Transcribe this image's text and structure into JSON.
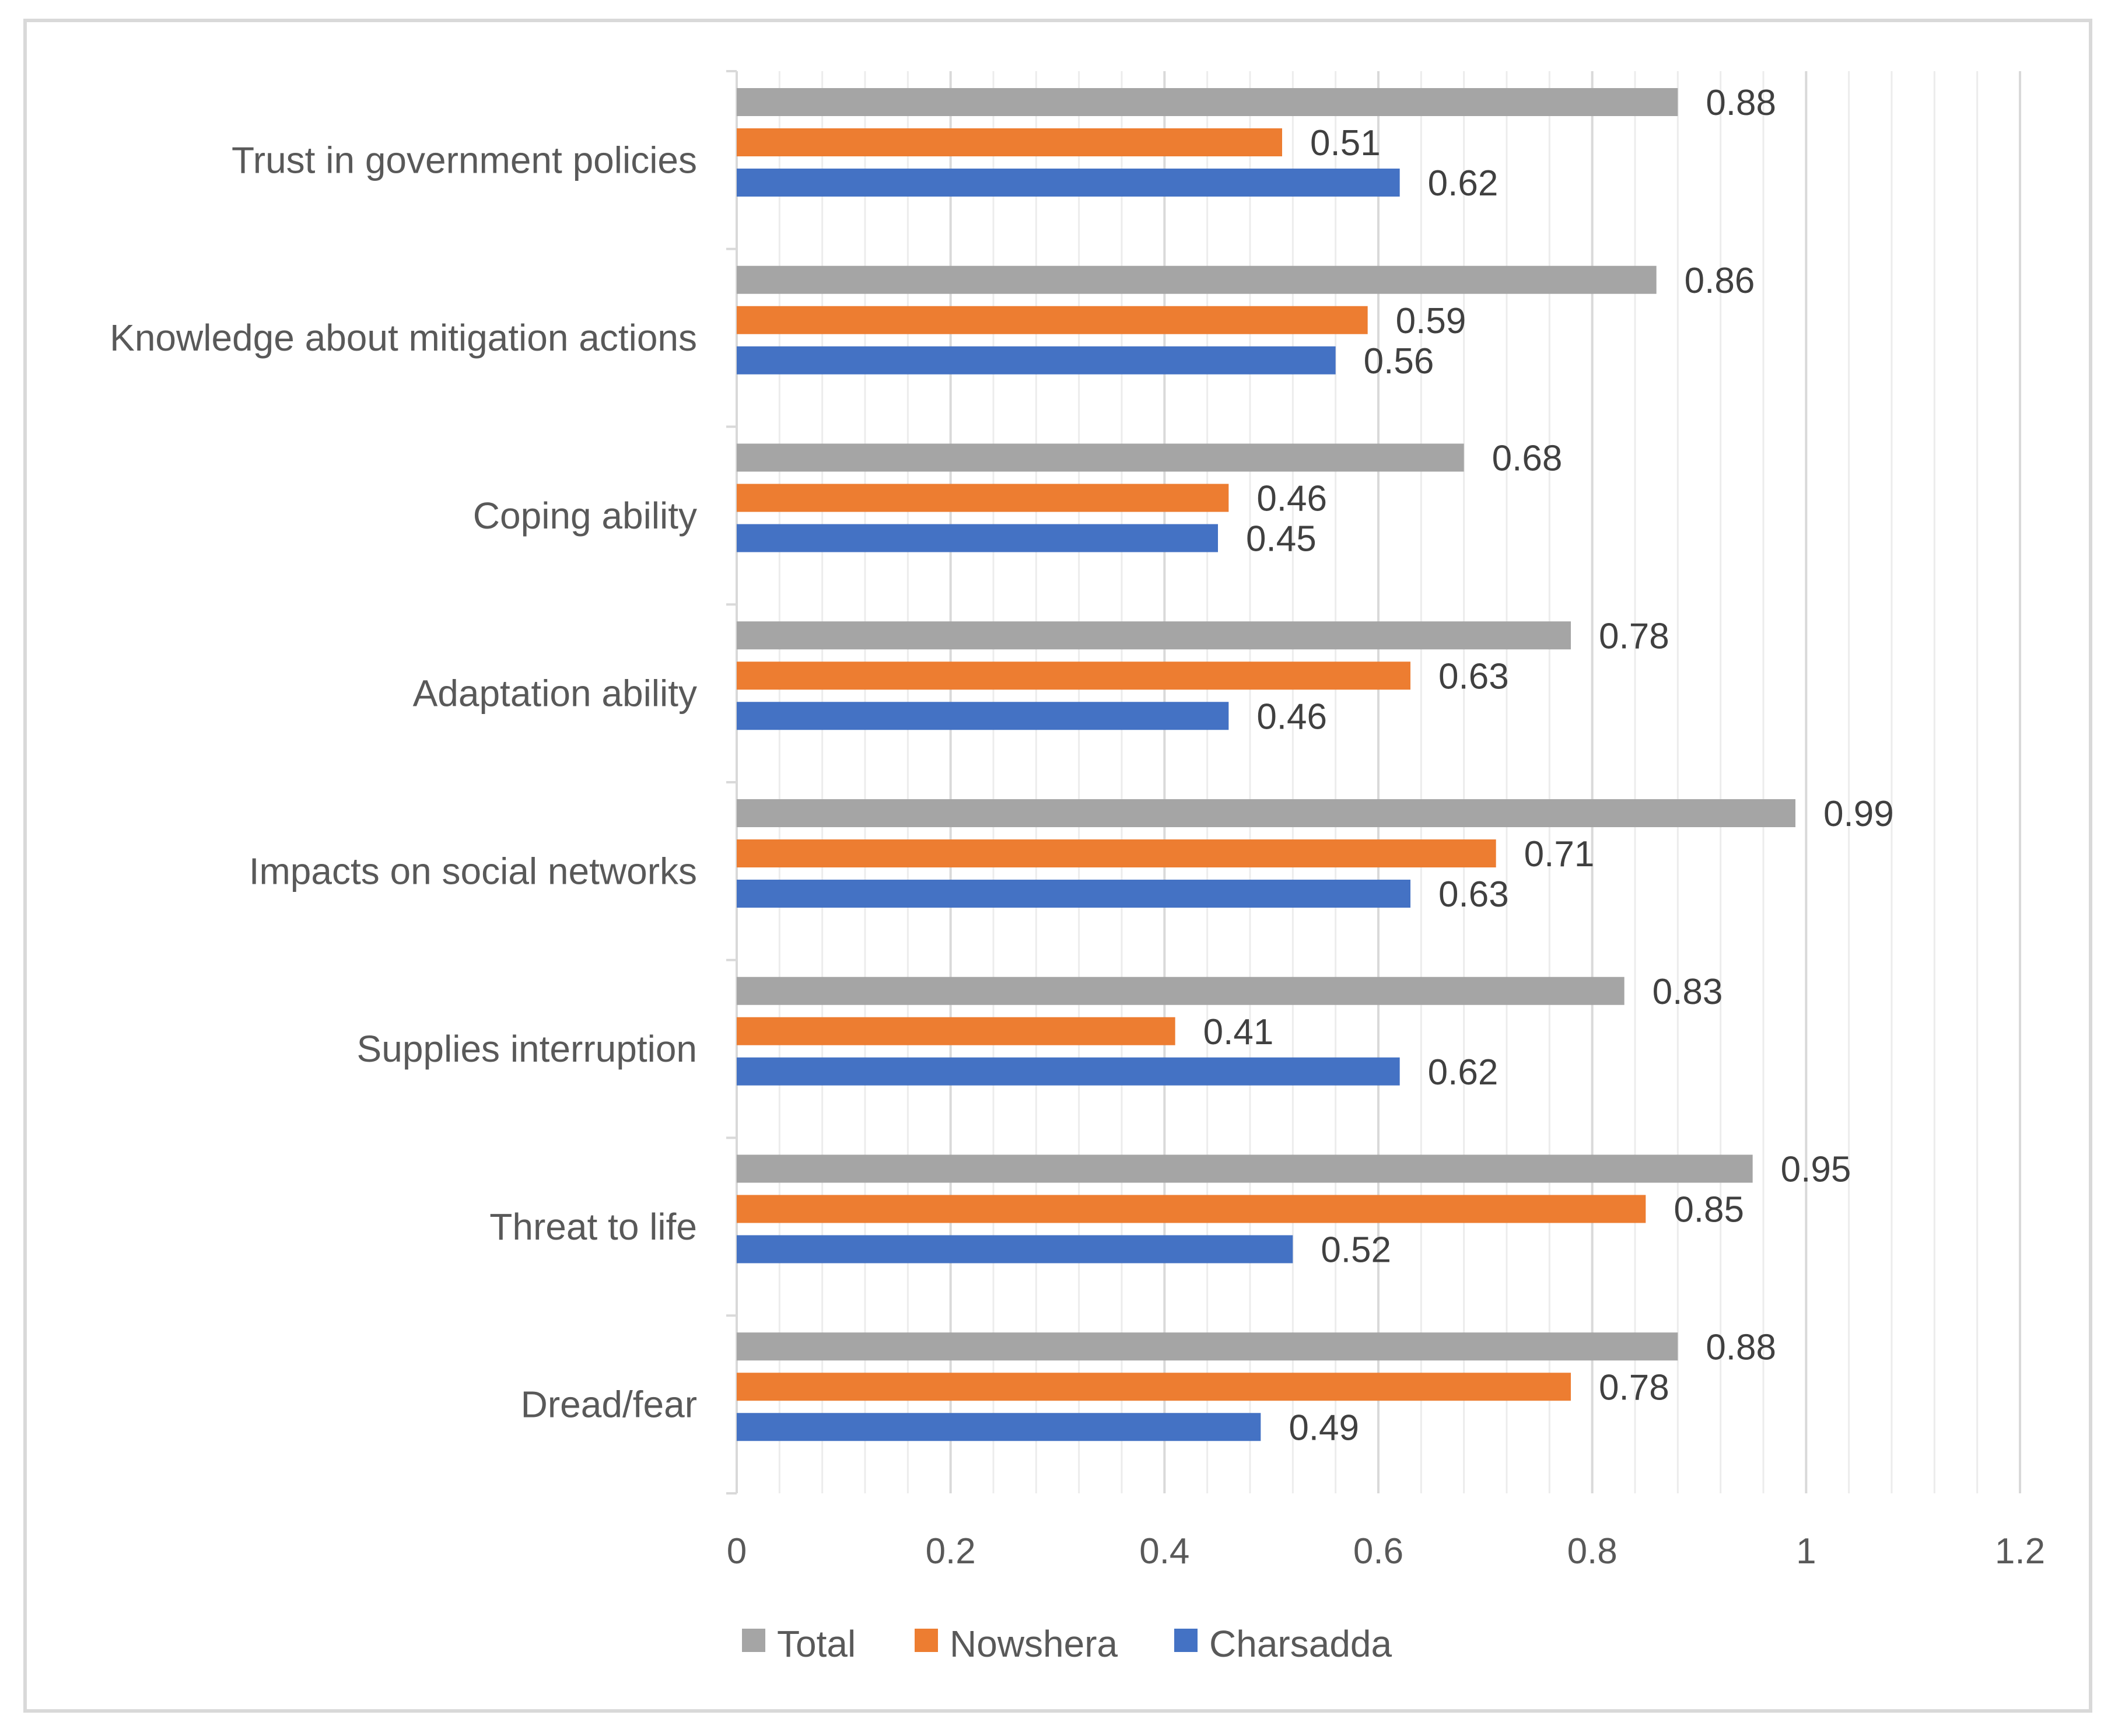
{
  "chart_data": {
    "type": "bar",
    "orientation": "horizontal",
    "categories": [
      "Trust in government policies",
      "Knowledge about mitigation actions",
      "Coping ability",
      "Adaptation ability",
      "Impacts on social networks",
      "Supplies interruption",
      "Threat to life",
      "Dread/fear"
    ],
    "series": [
      {
        "name": "Total",
        "color": "#a5a5a5",
        "values": [
          0.88,
          0.86,
          0.68,
          0.78,
          0.99,
          0.83,
          0.95,
          0.88
        ],
        "labels": [
          "0.88",
          "0.86",
          "0.68",
          "0.78",
          "0.99",
          "0.83",
          "0.95",
          "0.88"
        ]
      },
      {
        "name": "Nowshera",
        "color": "#ed7d31",
        "values": [
          0.51,
          0.59,
          0.46,
          0.63,
          0.71,
          0.41,
          0.85,
          0.78
        ],
        "labels": [
          "0.51",
          "0.59",
          "0.46",
          "0.63",
          "0.71",
          "0.41",
          "0.85",
          "0.78"
        ]
      },
      {
        "name": "Charsadda",
        "color": "#4472c4",
        "values": [
          0.62,
          0.56,
          0.45,
          0.46,
          0.63,
          0.62,
          0.52,
          0.49
        ],
        "labels": [
          "0.62",
          "0.56",
          "0.45",
          "0.46",
          "0.63",
          "0.62",
          "0.52",
          "0.49"
        ]
      }
    ],
    "x_ticks": [
      0,
      0.2,
      0.4,
      0.6,
      0.8,
      1,
      1.2
    ],
    "x_tick_labels": [
      "0",
      "0.2",
      "0.4",
      "0.6",
      "0.8",
      "1",
      "1.2"
    ],
    "xlim": [
      0,
      1.2
    ],
    "minor_grid_step": 0.04,
    "title": "",
    "xlabel": "",
    "ylabel": "",
    "legend_position": "bottom-center",
    "legend_order": [
      "Total",
      "Nowshera",
      "Charsadda"
    ],
    "grid_color": "#d9d9d9",
    "axis_color": "#d9d9d9"
  }
}
